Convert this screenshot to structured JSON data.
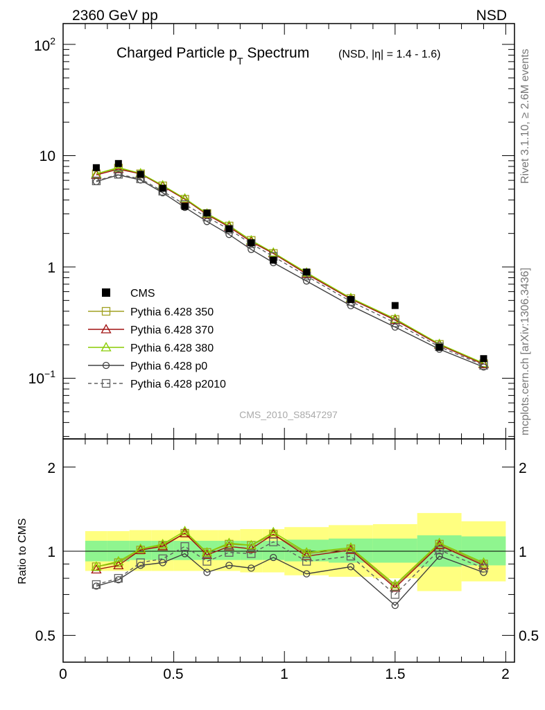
{
  "header": {
    "left": "2360 GeV pp",
    "right": "NSD"
  },
  "side_labels": {
    "rivet": "Rivet 3.1.10, ≥ 2.6M events",
    "mcplots": "mcplots.cern.ch [arXiv:1306.3436]"
  },
  "watermark": "CMS_2010_S8547297",
  "chart_data": {
    "type": "line",
    "title_main": "Charged Particle p",
    "title_sub": "T",
    "title_tail": " Spectrum",
    "title_small": "(NSD, |η| = 1.4 - 1.6)",
    "x": [
      0.15,
      0.25,
      0.35,
      0.45,
      0.55,
      0.65,
      0.75,
      0.85,
      0.95,
      1.1,
      1.3,
      1.5,
      1.7,
      1.9
    ],
    "xlim": [
      0,
      2.05
    ],
    "main_ylim": [
      0.03,
      150
    ],
    "main_yscale": "log",
    "ratio_ylim": [
      0.5,
      2.3
    ],
    "ratio_yscale": "log",
    "ratio_ylabel": "Ratio to CMS",
    "x_ticklabels": [
      "0",
      "0.5",
      "1",
      "1.5",
      "2"
    ],
    "main_ytick_labels": {
      "hundred_base": "10",
      "hundred_exp": "2",
      "ten": "10",
      "one": "1",
      "tenth_base": "10",
      "tenth_exp": "−1"
    },
    "ratio_ytick_labels": {
      "two": "2",
      "one": "1",
      "half": "0.5"
    },
    "cms": {
      "name": "CMS",
      "values": [
        7.8,
        8.5,
        6.8,
        5.1,
        3.5,
        3.05,
        2.2,
        1.65,
        1.15,
        0.9,
        0.51,
        0.45,
        0.19,
        0.15
      ]
    },
    "band_x_edges": [
      0.1,
      0.2,
      0.3,
      0.4,
      0.5,
      0.6,
      0.7,
      0.8,
      0.9,
      1.0,
      1.2,
      1.4,
      1.6,
      1.8,
      2.0
    ],
    "band_inner": [
      [
        0.92,
        1.09
      ],
      [
        0.92,
        1.09
      ],
      [
        0.93,
        1.09
      ],
      [
        0.93,
        1.09
      ],
      [
        0.93,
        1.09
      ],
      [
        0.93,
        1.09
      ],
      [
        0.93,
        1.09
      ],
      [
        0.93,
        1.09
      ],
      [
        0.93,
        1.09
      ],
      [
        0.92,
        1.1
      ],
      [
        0.91,
        1.11
      ],
      [
        0.91,
        1.11
      ],
      [
        0.88,
        1.14
      ],
      [
        0.89,
        1.13
      ]
    ],
    "band_outer": [
      [
        0.85,
        1.18
      ],
      [
        0.85,
        1.18
      ],
      [
        0.85,
        1.19
      ],
      [
        0.85,
        1.19
      ],
      [
        0.85,
        1.19
      ],
      [
        0.85,
        1.19
      ],
      [
        0.85,
        1.19
      ],
      [
        0.84,
        1.2
      ],
      [
        0.84,
        1.2
      ],
      [
        0.82,
        1.22
      ],
      [
        0.81,
        1.24
      ],
      [
        0.8,
        1.25
      ],
      [
        0.72,
        1.37
      ],
      [
        0.78,
        1.28
      ]
    ],
    "series": [
      {
        "name": "Pythia 6.428 350",
        "color": "#a0a020",
        "marker": "square-open",
        "dash": false,
        "ratio": [
          0.88,
          0.91,
          1.01,
          1.05,
          1.16,
          0.99,
          1.06,
          1.05,
          1.15,
          0.98,
          1.02,
          0.75,
          1.06,
          0.9
        ]
      },
      {
        "name": "Pythia 6.428 370",
        "color": "#a01010",
        "marker": "triangle-open",
        "dash": false,
        "ratio": [
          0.86,
          0.89,
          1.01,
          1.04,
          1.16,
          0.97,
          1.04,
          1.02,
          1.15,
          0.96,
          1.01,
          0.74,
          1.05,
          0.89
        ]
      },
      {
        "name": "Pythia 6.428 380",
        "color": "#88cc00",
        "marker": "triangle-open",
        "dash": false,
        "ratio": [
          0.88,
          0.92,
          1.02,
          1.06,
          1.18,
          0.99,
          1.07,
          1.05,
          1.17,
          0.99,
          1.03,
          0.76,
          1.07,
          0.91
        ]
      },
      {
        "name": "Pythia 6.428 p0",
        "color": "#404040",
        "marker": "circle-open",
        "dash": false,
        "ratio": [
          0.75,
          0.79,
          0.89,
          0.91,
          0.98,
          0.84,
          0.89,
          0.87,
          0.95,
          0.83,
          0.88,
          0.64,
          0.96,
          0.84
        ]
      },
      {
        "name": "Pythia 6.428 p2010",
        "color": "#606060",
        "marker": "square-open",
        "dash": true,
        "ratio": [
          0.76,
          0.8,
          0.91,
          0.94,
          1.04,
          0.92,
          0.99,
          0.98,
          1.08,
          0.92,
          0.96,
          0.7,
          1.01,
          0.87
        ]
      }
    ]
  }
}
